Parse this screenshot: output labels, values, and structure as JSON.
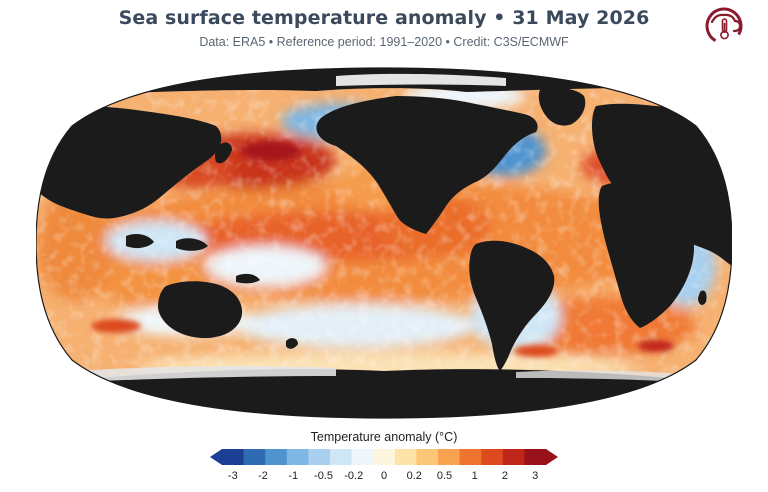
{
  "header": {
    "title": "Sea surface temperature anomaly • 31 May 2026",
    "subtitle": "Data: ERA5 • Reference period: 1991–2020 • Credit: C3S/ECMWF"
  },
  "logo": {
    "icon": "climate-thermometer-icon",
    "color": "#8b1a2e"
  },
  "map": {
    "projection": "robinson",
    "variable": "sea-surface-temperature-anomaly",
    "land_color": "#1b1b1b",
    "sea_ice_color": "#e4e4e4"
  },
  "legend": {
    "title": "Temperature anomaly (°C)",
    "ticks": [
      "-3",
      "-2",
      "-1",
      "-0.5",
      "-0.2",
      "0",
      "0.2",
      "0.5",
      "1",
      "2",
      "3"
    ],
    "colors": [
      "#1c3f95",
      "#2f6bb3",
      "#4f93cf",
      "#7fb6e3",
      "#a9d0ef",
      "#cfe6f6",
      "#eef6fb",
      "#fdf6df",
      "#fde3a8",
      "#fcc679",
      "#f9a24f",
      "#ef7430",
      "#dd4a1f",
      "#c0271a",
      "#99111a"
    ]
  }
}
